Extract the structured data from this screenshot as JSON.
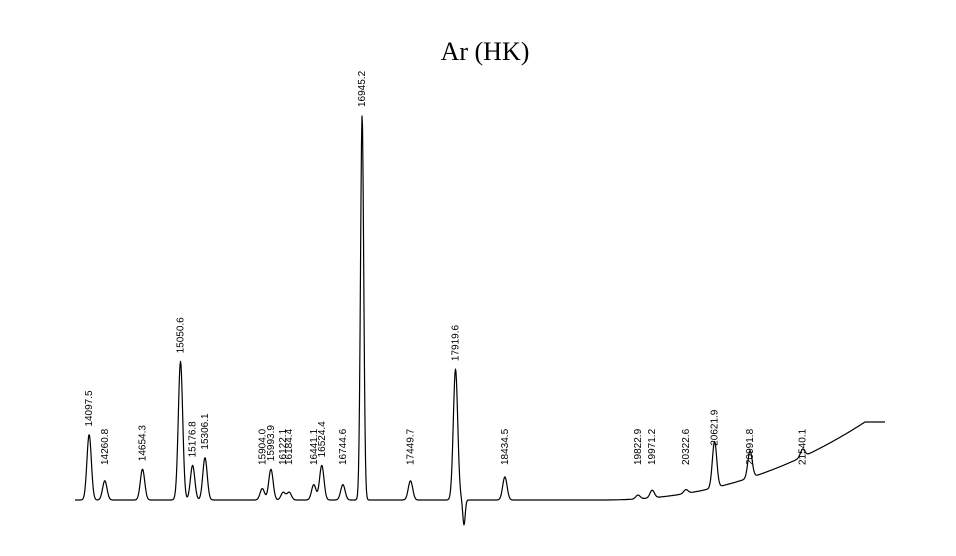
{
  "chart_data": {
    "type": "line",
    "title": "Ar (HK)",
    "xlabel": "",
    "ylabel": "",
    "grid": false,
    "legend": "none",
    "line_color": "#000000",
    "x_range": [
      13950,
      22400
    ],
    "peaks": [
      {
        "label": "14097.5",
        "x": 14097.5,
        "height": 0.17
      },
      {
        "label": "14260.8",
        "x": 14260.8,
        "height": 0.05
      },
      {
        "label": "14654.3",
        "x": 14654.3,
        "height": 0.08
      },
      {
        "label": "15050.6",
        "x": 15050.6,
        "height": 0.36
      },
      {
        "label": "15176.8",
        "x": 15176.8,
        "height": 0.09
      },
      {
        "label": "15306.1",
        "x": 15306.1,
        "height": 0.11
      },
      {
        "label": "15904.0",
        "x": 15904.0,
        "height": 0.03
      },
      {
        "label": "15993.9",
        "x": 15993.9,
        "height": 0.08
      },
      {
        "label": "16122.1",
        "x": 16122.1,
        "height": 0.02
      },
      {
        "label": "16184.4",
        "x": 16184.4,
        "height": 0.02
      },
      {
        "label": "16441.1",
        "x": 16441.1,
        "height": 0.04
      },
      {
        "label": "16524.4",
        "x": 16524.4,
        "height": 0.09
      },
      {
        "label": "16744.6",
        "x": 16744.6,
        "height": 0.04
      },
      {
        "label": "16945.2",
        "x": 16945.2,
        "height": 1.0
      },
      {
        "label": "17449.7",
        "x": 17449.7,
        "height": 0.05
      },
      {
        "label": "17919.6",
        "x": 17919.6,
        "height": 0.34
      },
      {
        "label": "18434.5",
        "x": 18434.5,
        "height": 0.06
      },
      {
        "label": "19822.9",
        "x": 19822.9,
        "height": 0.01
      },
      {
        "label": "19971.2",
        "x": 19971.2,
        "height": 0.02
      },
      {
        "label": "20322.6",
        "x": 20322.6,
        "height": 0.01
      },
      {
        "label": "20621.9",
        "x": 20621.9,
        "height": 0.12
      },
      {
        "label": "20991.8",
        "x": 20991.8,
        "height": 0.07
      },
      {
        "label": "21540.1",
        "x": 21540.1,
        "height": 0.02
      }
    ]
  }
}
